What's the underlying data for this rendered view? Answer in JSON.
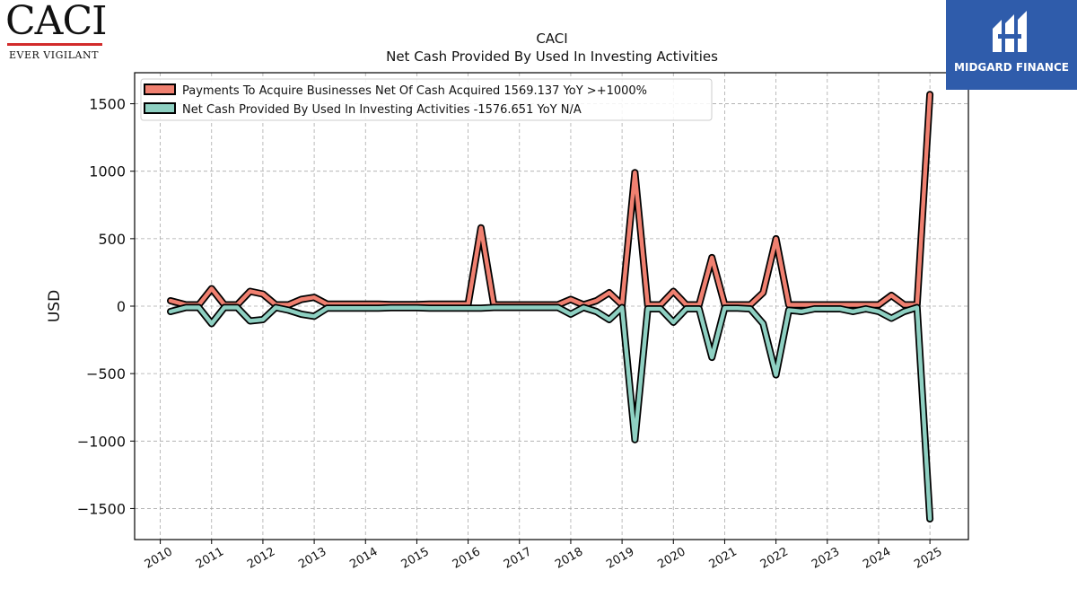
{
  "logos": {
    "left": {
      "name": "CACI",
      "tagline": "EVER VIGILANT"
    },
    "right": {
      "name": "MIDGARD FINANCE"
    }
  },
  "chart_data": {
    "type": "line",
    "title": "CACI",
    "subtitle": "Net Cash Provided By Used In Investing Activities",
    "xlabel": "",
    "ylabel": "USD",
    "xlim": [
      2009.5,
      2025.75
    ],
    "ylim": [
      -1730,
      1730
    ],
    "yticks": [
      -1500,
      -1000,
      -500,
      0,
      500,
      1000,
      1500
    ],
    "xticks": [
      2010,
      2011,
      2012,
      2013,
      2014,
      2015,
      2016,
      2017,
      2018,
      2019,
      2020,
      2021,
      2022,
      2023,
      2024,
      2025
    ],
    "grid": true,
    "legend_position": "top-left",
    "x": [
      2010.2,
      2010.5,
      2010.75,
      2011.0,
      2011.25,
      2011.5,
      2011.75,
      2012.0,
      2012.25,
      2012.5,
      2012.75,
      2013.0,
      2013.25,
      2013.5,
      2013.75,
      2014.0,
      2014.25,
      2014.5,
      2014.75,
      2015.0,
      2015.25,
      2015.5,
      2015.75,
      2016.0,
      2016.25,
      2016.5,
      2016.75,
      2017.0,
      2017.25,
      2017.5,
      2017.75,
      2018.0,
      2018.25,
      2018.5,
      2018.75,
      2019.0,
      2019.25,
      2019.5,
      2019.75,
      2020.0,
      2020.25,
      2020.5,
      2020.75,
      2021.0,
      2021.25,
      2021.5,
      2021.75,
      2022.0,
      2022.25,
      2022.5,
      2022.75,
      2023.0,
      2023.25,
      2023.5,
      2023.75,
      2024.0,
      2024.25,
      2024.5,
      2024.75,
      2025.0
    ],
    "series": [
      {
        "name": "Payments To Acquire Businesses Net Of Cash Acquired",
        "legend_suffix": "1569.137 YoY >+1000%",
        "color": "#f08070",
        "values": [
          40,
          10,
          10,
          130,
          10,
          10,
          110,
          90,
          10,
          10,
          50,
          65,
          15,
          15,
          15,
          15,
          15,
          12,
          12,
          12,
          15,
          15,
          15,
          15,
          580,
          10,
          10,
          10,
          10,
          10,
          10,
          50,
          10,
          40,
          100,
          10,
          990,
          10,
          10,
          110,
          10,
          10,
          360,
          10,
          10,
          10,
          100,
          500,
          10,
          10,
          10,
          10,
          10,
          10,
          10,
          10,
          80,
          10,
          10,
          1569.137
        ]
      },
      {
        "name": "Net Cash Provided By Used In Investing Activities",
        "legend_suffix": "-1576.651 YoY N/A",
        "color": "#8ed0c2",
        "values": [
          -40,
          -10,
          -10,
          -130,
          -10,
          -10,
          -110,
          -100,
          -10,
          -30,
          -60,
          -75,
          -15,
          -15,
          -15,
          -15,
          -15,
          -12,
          -12,
          -12,
          -15,
          -15,
          -15,
          -15,
          -15,
          -10,
          -10,
          -10,
          -10,
          -10,
          -10,
          -60,
          -10,
          -40,
          -100,
          -10,
          -990,
          -20,
          -20,
          -120,
          -20,
          -20,
          -380,
          -15,
          -15,
          -20,
          -130,
          -510,
          -30,
          -40,
          -20,
          -20,
          -20,
          -40,
          -20,
          -40,
          -90,
          -40,
          -10,
          -1576.651
        ]
      }
    ]
  }
}
